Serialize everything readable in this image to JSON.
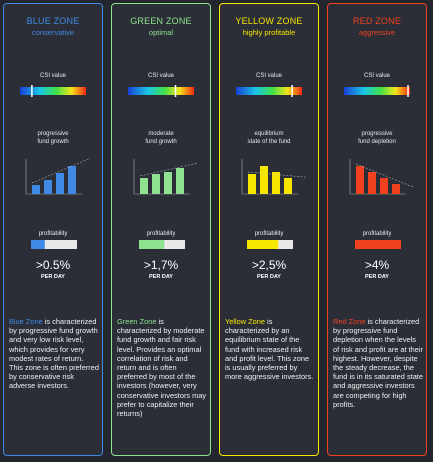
{
  "columns": [
    {
      "title": "BLUE ZONE",
      "subtitle": "conservative",
      "color": "#3f8ae6",
      "csi_label": "CSI value",
      "chart_label": [
        "progressive",
        "fund growth"
      ],
      "profit_label": "profitability",
      "profit": ">0.5%",
      "per_day": "PER DAY",
      "desc_lead": "Blue Zone",
      "desc_body": " is characterized by progressive fund growth and very low risk level, which provides for very modest rates of return. This zone is often preferred by conservative risk adverse investors."
    },
    {
      "title": "GREEN ZONE",
      "subtitle": "optimal",
      "color": "#8ee28f",
      "csi_label": "CSI value",
      "chart_label": [
        "moderate",
        "fund growth"
      ],
      "profit_label": "profitability",
      "profit": ">1,7%",
      "per_day": "PER DAY",
      "desc_lead": "Green Zone",
      "desc_body": " is characterized by moderate fund growth and fair risk level. Provides an optimal correlation of risk and return and is often preferred by most of the investors (however, very conservative investors may prefer to capitalize their returns)"
    },
    {
      "title": "YELLOW ZONE",
      "subtitle": "highly profitable",
      "color": "#f6e600",
      "csi_label": "CSI value",
      "chart_label": [
        "equilibrium",
        "state of the fund"
      ],
      "profit_label": "profitability",
      "profit": ">2,5%",
      "per_day": "PER DAY",
      "desc_lead": "Yellow Zone",
      "desc_body": " is characterized by an equilibrium state of the fund with increased risk and profit level. This zone is usually preferred by more aggressive investors."
    },
    {
      "title": "RED ZONE",
      "subtitle": "aggressive",
      "color": "#f0421f",
      "csi_label": "CSI value",
      "chart_label": [
        "progressive",
        "fund depletion"
      ],
      "profit_label": "profitability",
      "profit": ">4%",
      "per_day": "PER DAY",
      "desc_lead": "Red Zone",
      "desc_body": " is characterized by progressive fund depletion when the levels of risk and profit are at their highest. However, despite the steady decrease, the fund is in its saturated state and aggressive investors are competing for high profits."
    }
  ]
}
